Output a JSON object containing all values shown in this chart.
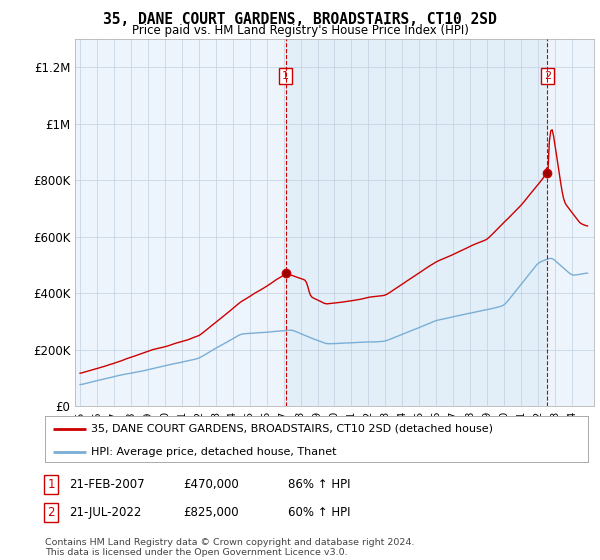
{
  "title": "35, DANE COURT GARDENS, BROADSTAIRS, CT10 2SD",
  "subtitle": "Price paid vs. HM Land Registry's House Price Index (HPI)",
  "legend_line1": "35, DANE COURT GARDENS, BROADSTAIRS, CT10 2SD (detached house)",
  "legend_line2": "HPI: Average price, detached house, Thanet",
  "footnote": "Contains HM Land Registry data © Crown copyright and database right 2024.\nThis data is licensed under the Open Government Licence v3.0.",
  "sale1_date": "21-FEB-2007",
  "sale1_price": "£470,000",
  "sale1_hpi": "86% ↑ HPI",
  "sale2_date": "21-JUL-2022",
  "sale2_price": "£825,000",
  "sale2_hpi": "60% ↑ HPI",
  "red_color": "#cc0000",
  "blue_color": "#7aaed6",
  "vline_color": "#cc0000",
  "grid_color": "#c8d8e8",
  "bg_color": "#ffffff",
  "plot_bg": "#ddeeff",
  "ylim": [
    0,
    1300000
  ],
  "yticks": [
    0,
    200000,
    400000,
    600000,
    800000,
    1000000,
    1200000
  ],
  "ytick_labels": [
    "£0",
    "£200K",
    "£400K",
    "£600K",
    "£800K",
    "£1M",
    "£1.2M"
  ],
  "vline1_x": 2007.125,
  "vline2_x": 2022.542,
  "marker1_x": 2007.125,
  "marker1_y": 470000,
  "marker2_x": 2022.542,
  "marker2_y": 825000,
  "xlim_left": 1994.7,
  "xlim_right": 2025.3
}
